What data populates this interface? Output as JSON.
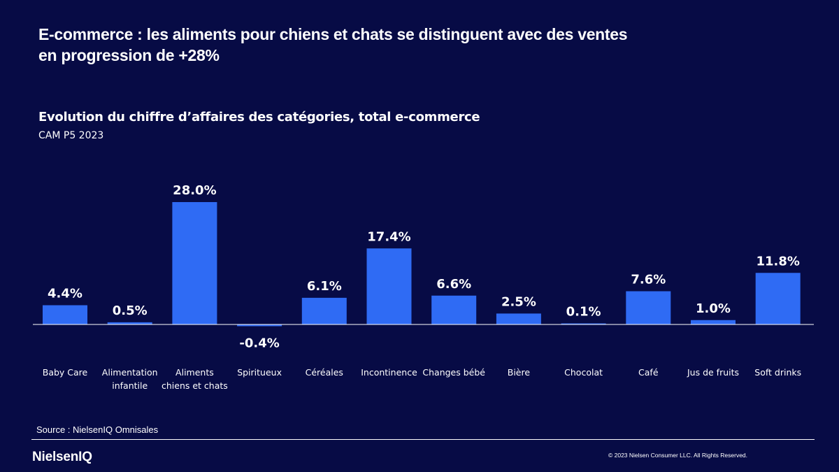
{
  "header": {
    "title_line1": "E-commerce : les aliments pour chiens et chats se distinguent avec des ventes",
    "title_line2": "en progression de +28%",
    "subtitle": "Evolution du chiffre d’affaires des catégories, total e-commerce",
    "period": "CAM P5 2023"
  },
  "chart_data": {
    "type": "bar",
    "title": "Evolution du chiffre d’affaires des catégories, total e-commerce",
    "subtitle": "CAM P5 2023",
    "unit": "%",
    "categories": [
      [
        "Baby Care"
      ],
      [
        "Alimentation",
        "infantile"
      ],
      [
        "Aliments",
        "chiens et chats"
      ],
      [
        "Spiritueux"
      ],
      [
        "Céréales"
      ],
      [
        "Incontinence"
      ],
      [
        "Changes bébé"
      ],
      [
        "Bière"
      ],
      [
        "Chocolat"
      ],
      [
        "Café"
      ],
      [
        "Jus de fruits"
      ],
      [
        "Soft drinks"
      ]
    ],
    "values": [
      4.4,
      0.5,
      28.0,
      -0.4,
      6.1,
      17.4,
      6.6,
      2.5,
      0.1,
      7.6,
      1.0,
      11.8
    ],
    "value_labels": [
      "4.4%",
      "0.5%",
      "28.0%",
      "-0.4%",
      "6.1%",
      "17.4%",
      "6.6%",
      "2.5%",
      "0.1%",
      "7.6%",
      "1.0%",
      "11.8%"
    ],
    "bar_color": "#2f6bf4",
    "grid": false,
    "legend": "none"
  },
  "footer": {
    "source": "Source : NielsenIQ  Omnisales",
    "logo_text": "NielsenIQ",
    "copyright": "© 2023  Nielsen Consumer LLC. All Rights Reserved."
  },
  "colors": {
    "background": "#070b45",
    "text": "#ffffff",
    "bar": "#2f6bf4"
  }
}
